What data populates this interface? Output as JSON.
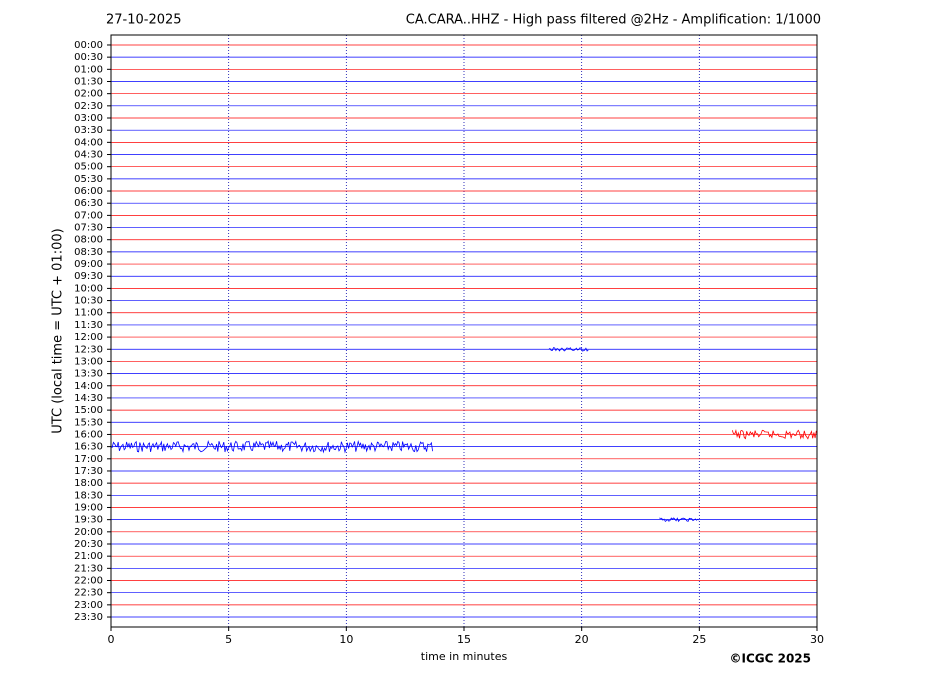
{
  "chart_data": {
    "type": "helicorder",
    "date": "27-10-2025",
    "title": "CA.CARA..HHZ - High pass filtered @2Hz - Amplification: 1/1000",
    "ylabel": "UTC (local time = UTC + 01:00)",
    "xlabel": "time in minutes",
    "credit": "©ICGC 2025",
    "categories": [
      "00:00",
      "00:30",
      "01:00",
      "01:30",
      "02:00",
      "02:30",
      "03:00",
      "03:30",
      "04:00",
      "04:30",
      "05:00",
      "05:30",
      "06:00",
      "06:30",
      "07:00",
      "07:30",
      "08:00",
      "08:30",
      "09:00",
      "09:30",
      "10:00",
      "10:30",
      "11:00",
      "11:30",
      "12:00",
      "12:30",
      "13:00",
      "13:30",
      "14:00",
      "14:30",
      "15:00",
      "15:30",
      "16:00",
      "16:30",
      "17:00",
      "17:30",
      "18:00",
      "18:30",
      "19:00",
      "19:30",
      "20:00",
      "20:30",
      "21:00",
      "21:30",
      "22:00",
      "22:30",
      "23:00",
      "23:30"
    ],
    "colors": [
      "#ff0000",
      "#0000ff"
    ],
    "xlim": [
      0,
      30
    ],
    "xticks": [
      0,
      5,
      10,
      15,
      20,
      25,
      30
    ],
    "grid": true,
    "events": [
      {
        "row": 33,
        "x": [
          0,
          13.7
        ],
        "amplitude": 0.45
      },
      {
        "row": 32,
        "x": [
          26.4,
          30
        ],
        "amplitude": 0.35
      },
      {
        "row": 25,
        "x": [
          18.6,
          20.3
        ],
        "amplitude": 0.15
      },
      {
        "row": 39,
        "x": [
          23.3,
          25
        ],
        "amplitude": 0.15
      }
    ]
  }
}
